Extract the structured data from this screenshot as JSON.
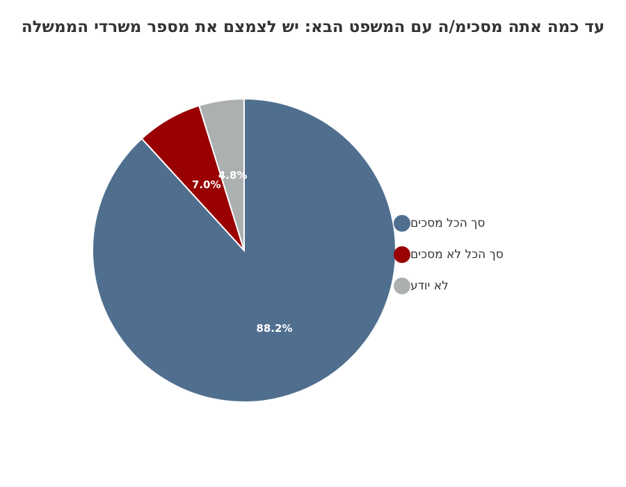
{
  "chart_data": {
    "type": "pie",
    "title": "עד כמה אתה מסכימ/ה עם המשפט הבא: יש לצמצם את מספר משרדי הממשלה",
    "series": [
      {
        "name": "סך הכל מסכים",
        "value": 88.2,
        "label": "88.2%",
        "color": "#506f8f"
      },
      {
        "name": "סך הכל לא מסכים",
        "value": 7.0,
        "label": "7.0%",
        "color": "#990000"
      },
      {
        "name": "לא יודע",
        "value": 4.8,
        "label": "4.8%",
        "color": "#acb0b1"
      }
    ],
    "legend_position": "right"
  }
}
